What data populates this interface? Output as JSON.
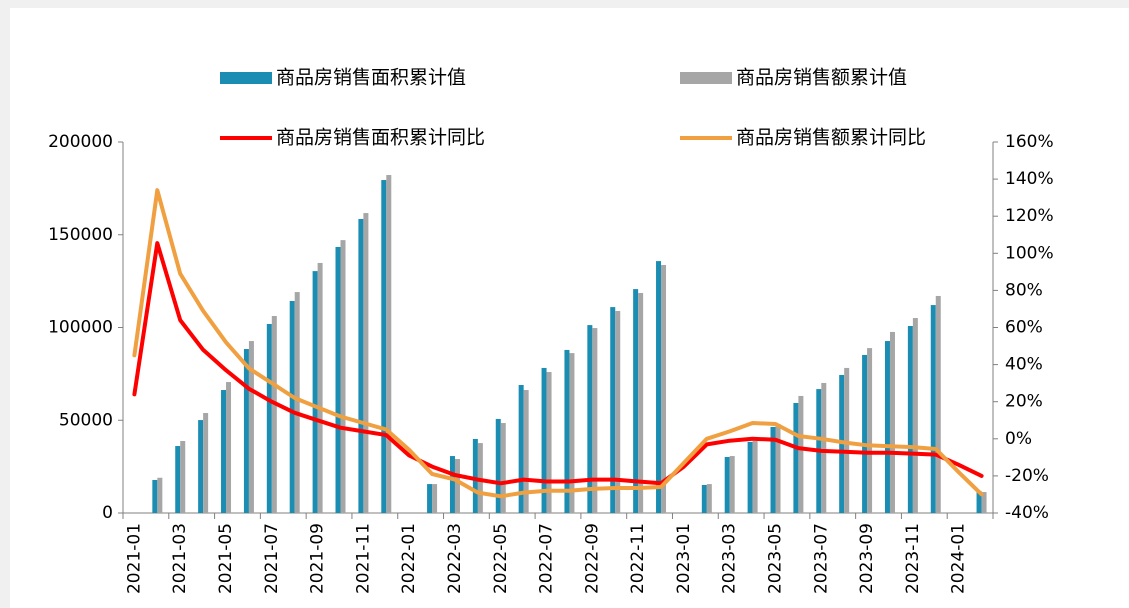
{
  "chart_data": {
    "type": "bar",
    "categories": [
      "2021-01",
      null,
      "2021-03",
      null,
      "2021-05",
      null,
      "2021-07",
      null,
      "2021-09",
      null,
      "2021-11",
      null,
      "2022-01",
      null,
      "2022-03",
      null,
      "2022-05",
      null,
      "2022-07",
      null,
      "2022-09",
      null,
      "2022-11",
      null,
      "2023-01",
      null,
      "2023-03",
      null,
      "2023-05",
      null,
      "2023-07",
      null,
      "2023-09",
      null,
      "2023-11",
      null,
      "2024-01",
      null
    ],
    "series": [
      {
        "name": "商品房销售面积累计值",
        "type": "bar",
        "color": "#1b8db2",
        "values": [
          null,
          17800,
          36100,
          50100,
          66300,
          88400,
          101900,
          114300,
          130400,
          143400,
          158500,
          179500,
          null,
          15600,
          30700,
          39900,
          50700,
          69000,
          78200,
          87900,
          101300,
          111000,
          120700,
          135800,
          null,
          15100,
          30200,
          38300,
          46400,
          59300,
          66800,
          74400,
          85200,
          92700,
          100800,
          112100,
          null,
          11900
        ]
      },
      {
        "name": "商品房销售额累计值",
        "type": "bar",
        "color": "#a6a6a6",
        "values": [
          null,
          19000,
          38800,
          53900,
          70600,
          92700,
          106200,
          119100,
          134800,
          147100,
          161700,
          182200,
          null,
          15600,
          29100,
          37700,
          48500,
          66300,
          76000,
          86200,
          99700,
          108900,
          118600,
          133700,
          null,
          15600,
          30700,
          38800,
          48000,
          63100,
          70100,
          78200,
          88900,
          97600,
          105100,
          117000,
          null,
          11300
        ]
      },
      {
        "name": "商品房销售面积累计同比",
        "type": "line",
        "axis": "y2",
        "color": "#ff0000",
        "values": [
          24,
          105.5,
          64,
          48,
          37,
          27,
          20,
          14,
          10,
          6,
          4,
          2,
          -9,
          -15,
          -19.5,
          -22,
          -24,
          -22,
          -23,
          -23,
          -22,
          -22,
          -23,
          -24,
          -15,
          -3,
          -1,
          0,
          -0.5,
          -5,
          -6.5,
          -7,
          -7.5,
          -7.5,
          -8,
          -8.5,
          -14,
          -20
        ]
      },
      {
        "name": "商品房销售额累计同比",
        "type": "line",
        "axis": "y2",
        "color": "#f0a040",
        "values": [
          45,
          134,
          89,
          69,
          52,
          38,
          30,
          22,
          17,
          12,
          8.5,
          5,
          -6,
          -19,
          -22,
          -29,
          -31,
          -29,
          -28,
          -28,
          -27,
          -26.5,
          -26.5,
          -26,
          -13,
          0,
          4,
          8.5,
          8,
          1.5,
          0,
          -2,
          -3.5,
          -4,
          -4.5,
          -5.5,
          -18,
          -30
        ]
      }
    ],
    "ylim": [
      0,
      200000
    ],
    "yticks": [
      0,
      50000,
      100000,
      150000,
      200000
    ],
    "y2lim": [
      -40,
      160
    ],
    "y2ticks": [
      {
        "value": -40,
        "label": "-40%"
      },
      {
        "value": -20,
        "label": "-20%"
      },
      {
        "value": 0,
        "label": "0%"
      },
      {
        "value": 20,
        "label": "20%"
      },
      {
        "value": 40,
        "label": "40%"
      },
      {
        "value": 60,
        "label": "60%"
      },
      {
        "value": 80,
        "label": "80%"
      },
      {
        "value": 100,
        "label": "100%"
      },
      {
        "value": 120,
        "label": "120%"
      },
      {
        "value": 140,
        "label": "140%"
      },
      {
        "value": 160,
        "label": "160%"
      }
    ],
    "legend": "top",
    "grid": false
  }
}
